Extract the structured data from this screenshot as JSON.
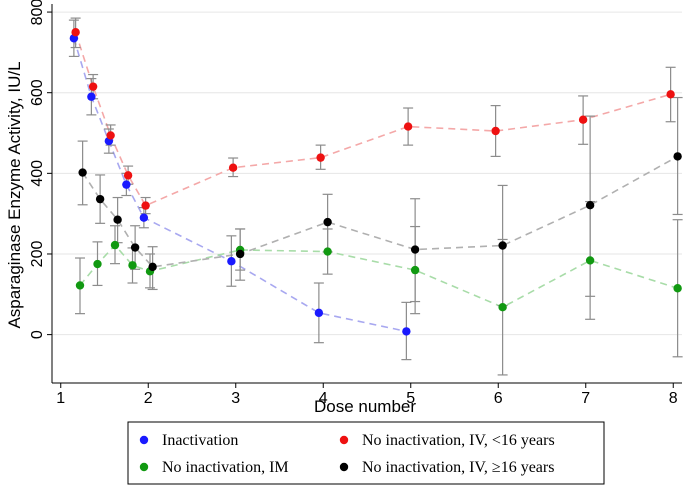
{
  "chart_data": {
    "type": "scatter",
    "xlabel": "Dose number",
    "ylabel": "Asparaginase Enzyme Activity, IU/L",
    "xlim": [
      0.9,
      8.1
    ],
    "ylim": [
      -120,
      820
    ],
    "x_ticks": [
      1,
      2,
      3,
      4,
      5,
      6,
      7,
      8
    ],
    "y_ticks": [
      0,
      200,
      400,
      600,
      800
    ],
    "legend_position": "bottom",
    "series": [
      {
        "name": "Inactivation",
        "color": "#1a1aff",
        "line_color": "#a8a8f0",
        "points": [
          {
            "x": 1.15,
            "y": 735,
            "lo": 690,
            "hi": 780
          },
          {
            "x": 1.35,
            "y": 590,
            "lo": 545,
            "hi": 635
          },
          {
            "x": 1.55,
            "y": 480,
            "lo": 450,
            "hi": 510
          },
          {
            "x": 1.75,
            "y": 372,
            "lo": 345,
            "hi": 400
          },
          {
            "x": 1.95,
            "y": 290,
            "lo": 265,
            "hi": 315
          },
          {
            "x": 2.95,
            "y": 182,
            "lo": 120,
            "hi": 245
          },
          {
            "x": 3.95,
            "y": 54,
            "lo": -20,
            "hi": 128
          },
          {
            "x": 4.95,
            "y": 8,
            "lo": -62,
            "hi": 80
          }
        ]
      },
      {
        "name": "No inactivation, IV, <16 years",
        "color": "#ee1111",
        "line_color": "#f4a8a8",
        "points": [
          {
            "x": 1.17,
            "y": 750,
            "lo": 712,
            "hi": 785
          },
          {
            "x": 1.37,
            "y": 615,
            "lo": 585,
            "hi": 645
          },
          {
            "x": 1.57,
            "y": 494,
            "lo": 470,
            "hi": 520
          },
          {
            "x": 1.77,
            "y": 395,
            "lo": 373,
            "hi": 418
          },
          {
            "x": 1.97,
            "y": 320,
            "lo": 300,
            "hi": 340
          },
          {
            "x": 2.97,
            "y": 414,
            "lo": 392,
            "hi": 438
          },
          {
            "x": 3.97,
            "y": 439,
            "lo": 410,
            "hi": 470
          },
          {
            "x": 4.97,
            "y": 516,
            "lo": 470,
            "hi": 562
          },
          {
            "x": 5.97,
            "y": 505,
            "lo": 442,
            "hi": 568
          },
          {
            "x": 6.97,
            "y": 533,
            "lo": 472,
            "hi": 592
          },
          {
            "x": 7.97,
            "y": 596,
            "lo": 528,
            "hi": 663
          }
        ]
      },
      {
        "name": "No inactivation, IM",
        "color": "#119911",
        "line_color": "#a8dca8",
        "points": [
          {
            "x": 1.22,
            "y": 122,
            "lo": 52,
            "hi": 190
          },
          {
            "x": 1.42,
            "y": 175,
            "lo": 122,
            "hi": 230
          },
          {
            "x": 1.62,
            "y": 222,
            "lo": 176,
            "hi": 270
          },
          {
            "x": 1.82,
            "y": 172,
            "lo": 128,
            "hi": 215
          },
          {
            "x": 2.02,
            "y": 157,
            "lo": 116,
            "hi": 200
          },
          {
            "x": 3.05,
            "y": 210,
            "lo": 160,
            "hi": 262
          },
          {
            "x": 4.05,
            "y": 206,
            "lo": 150,
            "hi": 262
          },
          {
            "x": 5.05,
            "y": 160,
            "lo": 52,
            "hi": 268
          },
          {
            "x": 6.05,
            "y": 68,
            "lo": -100,
            "hi": 236
          },
          {
            "x": 7.05,
            "y": 184,
            "lo": 38,
            "hi": 330
          },
          {
            "x": 8.05,
            "y": 115,
            "lo": -55,
            "hi": 285
          }
        ]
      },
      {
        "name": "No inactivation, IV, ≥16 years",
        "color": "#000000",
        "line_color": "#b0b0b0",
        "points": [
          {
            "x": 1.25,
            "y": 402,
            "lo": 322,
            "hi": 480
          },
          {
            "x": 1.45,
            "y": 336,
            "lo": 276,
            "hi": 396
          },
          {
            "x": 1.65,
            "y": 285,
            "lo": 228,
            "hi": 340
          },
          {
            "x": 1.85,
            "y": 216,
            "lo": 162,
            "hi": 270
          },
          {
            "x": 2.05,
            "y": 168,
            "lo": 112,
            "hi": 218
          },
          {
            "x": 3.05,
            "y": 200,
            "lo": 135,
            "hi": 262
          },
          {
            "x": 4.05,
            "y": 279,
            "lo": 205,
            "hi": 348
          },
          {
            "x": 5.05,
            "y": 211,
            "lo": 82,
            "hi": 337
          },
          {
            "x": 6.05,
            "y": 221,
            "lo": 72,
            "hi": 370
          },
          {
            "x": 7.05,
            "y": 321,
            "lo": 95,
            "hi": 542
          },
          {
            "x": 8.05,
            "y": 442,
            "lo": 298,
            "hi": 588
          }
        ]
      }
    ],
    "legend_items": [
      {
        "label": "Inactivation",
        "color": "#1a1aff"
      },
      {
        "label": "No inactivation, IV, <16 years",
        "color": "#ee1111"
      },
      {
        "label": "No inactivation, IM",
        "color": "#119911"
      },
      {
        "label": "No inactivation, IV, ≥16 years",
        "color": "#000000"
      }
    ]
  }
}
